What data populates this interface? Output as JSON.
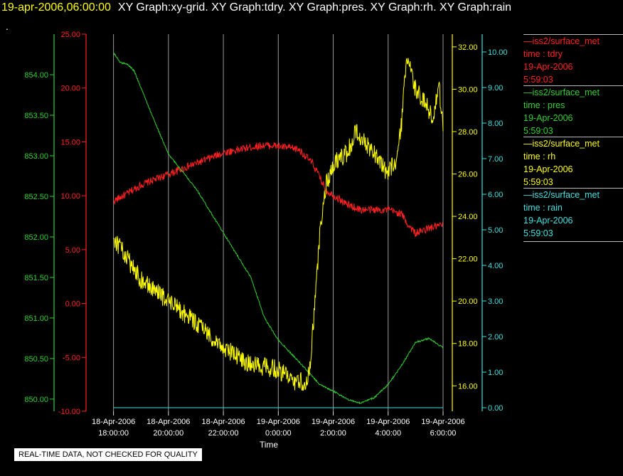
{
  "header": {
    "timestamp": "19-apr-2006,06:00:00",
    "graphs": "XY Graph:xy-grid.  XY Graph:tdry.  XY Graph:pres.  XY Graph:rh.  XY Graph:rain"
  },
  "corner_mark": ".",
  "qa_label": "REAL-TIME DATA, NOT CHECKED FOR QUALITY",
  "legend": [
    {
      "source": "—iss2/surface_met",
      "var": "time : tdry",
      "date": "19-Apr-2006",
      "time": "5:59:03",
      "color": "#ff2020"
    },
    {
      "source": "—iss2/surface_met",
      "var": "time : pres",
      "date": "19-Apr-2006",
      "time": "5:59:03",
      "color": "#30d030"
    },
    {
      "source": "—iss2/surface_met",
      "var": "time : rh",
      "date": "19-Apr-2006",
      "time": "5:59:03",
      "color": "#ffff00"
    },
    {
      "source": "—iss2/surface_met",
      "var": "time : rain",
      "date": "19-Apr-2006",
      "time": "5:59:03",
      "color": "#40e0e0"
    }
  ],
  "chart_data": {
    "type": "line",
    "xlabel": "Time",
    "x_range": [
      "18-Apr-2006 17:00",
      "19-Apr-2006 06:00"
    ],
    "x_ticks": [
      {
        "date": "18-Apr-2006",
        "time": "18:00:00"
      },
      {
        "date": "18-Apr-2006",
        "time": "20:00:00"
      },
      {
        "date": "18-Apr-2006",
        "time": "22:00:00"
      },
      {
        "date": "19-Apr-2006",
        "time": "0:00:00"
      },
      {
        "date": "19-Apr-2006",
        "time": "2:00:00"
      },
      {
        "date": "19-Apr-2006",
        "time": "4:00:00"
      },
      {
        "date": "19-Apr-2006",
        "time": "6:00:00"
      }
    ],
    "grid_x": true,
    "background": "#000000",
    "axes": {
      "tdry": {
        "side": "left-inner",
        "color": "#ff2020",
        "range": [
          -10,
          25
        ],
        "ticks": [
          "25.00",
          "20.00",
          "15.00",
          "10.00",
          "5.00",
          "0.00",
          "-5.00",
          "-10.00"
        ]
      },
      "pres": {
        "side": "left-outer",
        "color": "#30d030",
        "range": [
          849.85,
          854.5
        ],
        "ticks": [
          "854.00",
          "853.50",
          "853.00",
          "852.50",
          "852.00",
          "851.50",
          "851.00",
          "850.50",
          "850.00"
        ]
      },
      "rh": {
        "side": "right-inner",
        "color": "#ffff00",
        "range": [
          14.8,
          32.6
        ],
        "ticks": [
          "32.00",
          "30.00",
          "28.00",
          "26.00",
          "24.00",
          "22.00",
          "20.00",
          "18.00",
          "16.00"
        ]
      },
      "rain": {
        "side": "right-outer",
        "color": "#40e0e0",
        "range": [
          -0.1,
          10.5
        ],
        "ticks": [
          "10.00",
          "9.00",
          "8.00",
          "7.00",
          "6.00",
          "5.00",
          "4.00",
          "3.00",
          "2.00",
          "1.00",
          "0.00"
        ]
      }
    },
    "series": [
      {
        "name": "tdry",
        "color": "#ff2020",
        "noise": 0.35,
        "x": [
          "18-Apr-2006 18:00",
          "18-Apr-2006 18:30",
          "18-Apr-2006 19:00",
          "18-Apr-2006 20:00",
          "18-Apr-2006 21:00",
          "18-Apr-2006 22:00",
          "18-Apr-2006 23:00",
          "18-Apr-2006 23:30",
          "19-Apr-2006 00:00",
          "19-Apr-2006 00:45",
          "19-Apr-2006 01:15",
          "19-Apr-2006 01:45",
          "19-Apr-2006 02:30",
          "19-Apr-2006 03:00",
          "19-Apr-2006 04:00",
          "19-Apr-2006 04:30",
          "19-Apr-2006 04:40",
          "19-Apr-2006 05:00",
          "19-Apr-2006 05:30",
          "19-Apr-2006 06:00"
        ],
        "y": [
          9.5,
          10.2,
          11.0,
          12.0,
          13.0,
          14.0,
          14.5,
          14.7,
          14.6,
          14.3,
          13.0,
          10.5,
          9.2,
          8.7,
          8.7,
          8.3,
          7.5,
          6.5,
          7.0,
          7.3
        ]
      },
      {
        "name": "pres",
        "color": "#30d030",
        "noise": 0.01,
        "x": [
          "18-Apr-2006 18:00",
          "18-Apr-2006 18:15",
          "18-Apr-2006 18:30",
          "18-Apr-2006 18:45",
          "18-Apr-2006 19:30",
          "18-Apr-2006 20:00",
          "18-Apr-2006 21:00",
          "18-Apr-2006 22:00",
          "18-Apr-2006 23:00",
          "18-Apr-2006 23:30",
          "19-Apr-2006 00:00",
          "19-Apr-2006 00:30",
          "19-Apr-2006 01:00",
          "19-Apr-2006 01:30",
          "19-Apr-2006 02:00",
          "19-Apr-2006 02:30",
          "19-Apr-2006 03:00",
          "19-Apr-2006 03:30",
          "19-Apr-2006 04:00",
          "19-Apr-2006 04:30",
          "19-Apr-2006 05:00",
          "19-Apr-2006 05:30",
          "19-Apr-2006 06:00"
        ],
        "y": [
          854.27,
          854.15,
          854.13,
          854.05,
          853.42,
          853.02,
          852.6,
          852.05,
          851.5,
          851.0,
          850.73,
          850.55,
          850.37,
          850.18,
          850.1,
          850.0,
          849.95,
          850.02,
          850.18,
          850.42,
          850.7,
          850.75,
          850.63
        ]
      },
      {
        "name": "rh",
        "color": "#ffff00",
        "noise": 0.45,
        "x": [
          "18-Apr-2006 18:00",
          "18-Apr-2006 18:30",
          "18-Apr-2006 19:00",
          "18-Apr-2006 20:00",
          "18-Apr-2006 21:00",
          "18-Apr-2006 22:00",
          "18-Apr-2006 23:00",
          "19-Apr-2006 00:00",
          "19-Apr-2006 00:30",
          "19-Apr-2006 01:00",
          "19-Apr-2006 01:10",
          "19-Apr-2006 01:20",
          "19-Apr-2006 01:30",
          "19-Apr-2006 01:45",
          "19-Apr-2006 02:00",
          "19-Apr-2006 02:30",
          "19-Apr-2006 02:50",
          "19-Apr-2006 03:15",
          "19-Apr-2006 03:30",
          "19-Apr-2006 04:00",
          "19-Apr-2006 04:20",
          "19-Apr-2006 04:30",
          "19-Apr-2006 04:40",
          "19-Apr-2006 04:50",
          "19-Apr-2006 05:00",
          "19-Apr-2006 05:15",
          "19-Apr-2006 05:30",
          "19-Apr-2006 05:40",
          "19-Apr-2006 05:50",
          "19-Apr-2006 06:00"
        ],
        "y": [
          23.0,
          22.0,
          21.0,
          20.0,
          19.0,
          17.8,
          17.0,
          16.8,
          16.2,
          16.2,
          17.0,
          20.0,
          23.0,
          25.5,
          26.5,
          27.0,
          28.0,
          27.3,
          27.0,
          26.0,
          26.8,
          28.5,
          31.5,
          30.8,
          30.0,
          29.5,
          29.0,
          28.5,
          30.5,
          28.0
        ]
      },
      {
        "name": "rain",
        "color": "#40e0e0",
        "noise": 0,
        "x": [
          "18-Apr-2006 18:00",
          "19-Apr-2006 06:00"
        ],
        "y": [
          0.0,
          0.0
        ]
      }
    ]
  }
}
